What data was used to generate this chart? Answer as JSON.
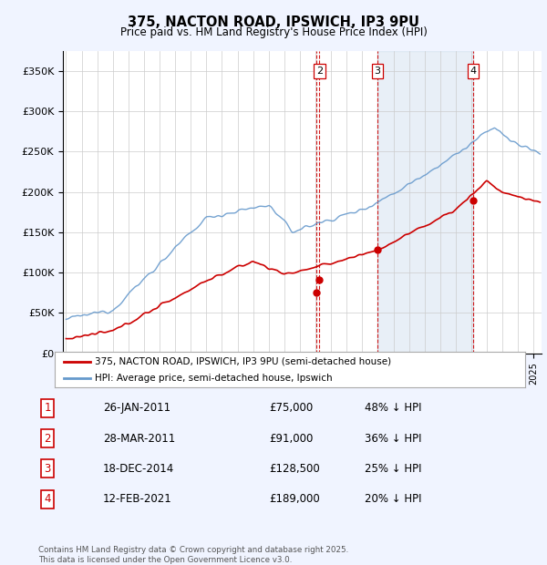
{
  "title": "375, NACTON ROAD, IPSWICH, IP3 9PU",
  "subtitle": "Price paid vs. HM Land Registry's House Price Index (HPI)",
  "ylabel_ticks": [
    "£0",
    "£50K",
    "£100K",
    "£150K",
    "£200K",
    "£250K",
    "£300K",
    "£350K"
  ],
  "ytick_vals": [
    0,
    50000,
    100000,
    150000,
    200000,
    250000,
    300000,
    350000
  ],
  "ylim": [
    0,
    375000
  ],
  "xlim_start": 1994.8,
  "xlim_end": 2025.5,
  "sale_color": "#cc0000",
  "hpi_color": "#6699cc",
  "hpi_fill_color": "#ddeeff",
  "vline_color": "#cc0000",
  "sale_dates_num": [
    2011.07,
    2011.25,
    2014.97,
    2021.12
  ],
  "sale_prices": [
    75000,
    91000,
    128500,
    189000
  ],
  "sale_labels": [
    "1",
    "2",
    "3",
    "4"
  ],
  "shade_regions": [
    [
      2014.97,
      2021.12
    ]
  ],
  "legend_entries": [
    "375, NACTON ROAD, IPSWICH, IP3 9PU (semi-detached house)",
    "HPI: Average price, semi-detached house, Ipswich"
  ],
  "table_rows": [
    [
      "1",
      "26-JAN-2011",
      "£75,000",
      "48% ↓ HPI"
    ],
    [
      "2",
      "28-MAR-2011",
      "£91,000",
      "36% ↓ HPI"
    ],
    [
      "3",
      "18-DEC-2014",
      "£128,500",
      "25% ↓ HPI"
    ],
    [
      "4",
      "12-FEB-2021",
      "£189,000",
      "20% ↓ HPI"
    ]
  ],
  "footer": "Contains HM Land Registry data © Crown copyright and database right 2025.\nThis data is licensed under the Open Government Licence v3.0.",
  "background_color": "#f0f4ff",
  "plot_bg_color": "#ffffff",
  "fig_width": 6.0,
  "fig_height": 6.2,
  "dpi": 100
}
